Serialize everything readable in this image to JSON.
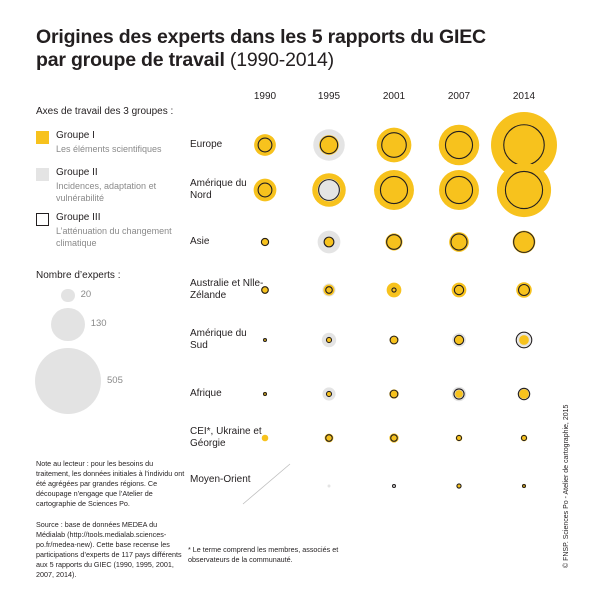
{
  "title": {
    "line1": "Origines des experts dans les 5 rapports du GIEC",
    "line2_bold": "par groupe de travail",
    "line2_plain": " (1990-2014)"
  },
  "legend": {
    "heading": "Axes de travail des 3 groupes :",
    "groups": [
      {
        "name": "Groupe I",
        "description": "Les éléments scientifiques",
        "color": "#f7c21d",
        "style": "fill"
      },
      {
        "name": "Groupe II",
        "description": "Incidences, adaptation et vulnérabilité",
        "color": "#e4e4e4",
        "style": "fill"
      },
      {
        "name": "Groupe III",
        "description": "L’atténuation du changement climatique",
        "color": "#231f20",
        "style": "outline"
      }
    ],
    "size_heading": "Nombre d’experts :",
    "sizes": [
      20,
      130,
      505
    ]
  },
  "notes": {
    "reader": "Note au lecteur : pour les besoins du traitement, les données initiales à l’individu ont été agrégées par grandes régions. Ce découpage n’engage que l’Atelier de cartographie de Sciences Po.",
    "source": "Source : base de données MEDEA du Médialab (http://tools.medialab.sciences-po.fr/medea-new). Cette base recense les participations d’experts de 117 pays différents aux 5 rapports du GIEC (1990, 1995, 2001, 2007, 2014).",
    "footnote": "* Le terme comprend les membres, associés et observateurs de la communauté.",
    "credit": "© FNSP. Sciences Po - Atelier de cartographie, 2015"
  },
  "chart_data": {
    "type": "proportional-circle-matrix",
    "years": [
      "1990",
      "1995",
      "2001",
      "2007",
      "2014"
    ],
    "regions": [
      {
        "label": "Europe",
        "values": [
          {
            "g1": 55,
            "g2": 0,
            "g3": 22
          },
          {
            "g1": 45,
            "g2": 115,
            "g3": 35
          },
          {
            "g1": 140,
            "g2": 0,
            "g3": 70
          },
          {
            "g1": 190,
            "g2": 0,
            "g3": 85
          },
          {
            "g1": 505,
            "g2": 0,
            "g3": 190
          }
        ]
      },
      {
        "label": "Amérique du Nord",
        "values": [
          {
            "g1": 60,
            "g2": 0,
            "g3": 22
          },
          {
            "g1": 130,
            "g2": 60,
            "g3": 50
          },
          {
            "g1": 185,
            "g2": 0,
            "g3": 85
          },
          {
            "g1": 185,
            "g2": 0,
            "g3": 85
          },
          {
            "g1": 340,
            "g2": 0,
            "g3": 160
          }
        ]
      },
      {
        "label": "Asie",
        "values": [
          {
            "g1": 8,
            "g2": 0,
            "g3": 6
          },
          {
            "g1": 11,
            "g2": 60,
            "g3": 11
          },
          {
            "g1": 34,
            "g2": 0,
            "g3": 25
          },
          {
            "g1": 45,
            "g2": 0,
            "g3": 30
          },
          {
            "g1": 60,
            "g2": 0,
            "g3": 50
          }
        ]
      },
      {
        "label": "Australie et Nlle-Zélande",
        "values": [
          {
            "g1": 7,
            "g2": 0,
            "g3": 5
          },
          {
            "g1": 14,
            "g2": 20,
            "g3": 5
          },
          {
            "g1": 25,
            "g2": 0,
            "g3": 2
          },
          {
            "g1": 25,
            "g2": 0,
            "g3": 10
          },
          {
            "g1": 28,
            "g2": 0,
            "g3": 14
          }
        ]
      },
      {
        "label": "Amérique du Sud",
        "values": [
          {
            "g1": 1,
            "g2": 0,
            "g3": 1
          },
          {
            "g1": 4,
            "g2": 24,
            "g3": 3
          },
          {
            "g1": 9,
            "g2": 0,
            "g3": 7
          },
          {
            "g1": 11,
            "g2": 22,
            "g3": 10
          },
          {
            "g1": 11,
            "g2": 22,
            "g3": 28
          }
        ]
      },
      {
        "label": "Afrique",
        "values": [
          {
            "g1": 2,
            "g2": 0,
            "g3": 1
          },
          {
            "g1": 3,
            "g2": 20,
            "g3": 3
          },
          {
            "g1": 10,
            "g2": 0,
            "g3": 7
          },
          {
            "g1": 7,
            "g2": 24,
            "g3": 12
          },
          {
            "g1": 11,
            "g2": 13,
            "g3": 15
          }
        ]
      },
      {
        "label": "CEI*, Ukraine et Géorgie",
        "values": [
          {
            "g1": 5,
            "g2": 0,
            "g3": 0
          },
          {
            "g1": 9,
            "g2": 0,
            "g3": 5
          },
          {
            "g1": 10,
            "g2": 0,
            "g3": 5
          },
          {
            "g1": 5,
            "g2": 0,
            "g3": 3
          },
          {
            "g1": 5,
            "g2": 0,
            "g3": 3
          }
        ]
      },
      {
        "label": "Moyen-Orient",
        "values": [
          null,
          {
            "g1": 0,
            "g2": 1,
            "g3": 0
          },
          {
            "g1": 0,
            "g2": 0,
            "g3": 1
          },
          {
            "g1": 2,
            "g2": 0,
            "g3": 2
          },
          {
            "g1": 2,
            "g2": 0,
            "g3": 1
          }
        ]
      }
    ],
    "scale_reference": {
      "value": 505
    }
  }
}
